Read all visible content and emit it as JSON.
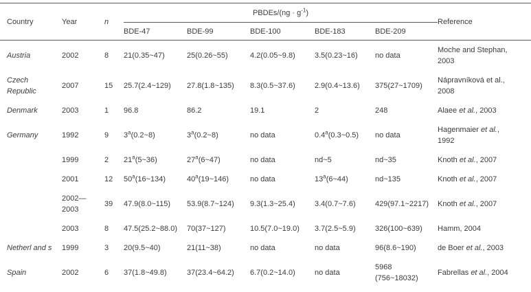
{
  "colors": {
    "background": "#ffffff",
    "text": "#3b3b3b",
    "rule": "#595959"
  },
  "table": {
    "header": {
      "country_label": "Country",
      "year_label": "Year",
      "n_label": "n",
      "group_label": "PBDEs/(ng · g{-1})",
      "congener_labels": [
        "BDE-47",
        "BDE-99",
        "BDE-100",
        "BDE-183",
        "BDE-209"
      ],
      "reference_label": "Reference"
    },
    "footnote_marker": "a",
    "no_data_text": "no data",
    "rows": [
      {
        "country": "Austria",
        "year": "2002",
        "n": "8",
        "bde47": "21(0.35~47)",
        "bde99": "25(0.26~55)",
        "bde100": "4.2(0.05~9.8)",
        "bde183": "3.5(0.23~16)",
        "bde209": "no data",
        "reference": "Moche and Stephan，2003"
      },
      {
        "country": "Czech Republic",
        "year": "2007",
        "n": "15",
        "bde47": "25.7(2.4~129)",
        "bde99": "27.8(1.8~135)",
        "bde100": "8.3(0.5~37.6)",
        "bde183": "2.9(0.4~13.6)",
        "bde209": "375(27~1709)",
        "reference": "Nápravníková et al.，2008"
      },
      {
        "country": "Denmark",
        "year": "2003",
        "n": "1",
        "bde47": "96.8",
        "bde99": "86.2",
        "bde100": "19.1",
        "bde183": "2",
        "bde209": "248",
        "reference": "Alaee *et al.*, 2003"
      },
      {
        "country": "Germany",
        "year": "1992",
        "n": "9",
        "bde47": "3{a}(0.2~8)",
        "bde99": "3{a}(0.2~8)",
        "bde100": "no data",
        "bde183": "0.4{a}(0.3~0.5)",
        "bde209": "no data",
        "reference": "Hagenmaier *et al.*, 1992"
      },
      {
        "country": "",
        "year": "1999",
        "n": "2",
        "bde47": "21{a}(5~36)",
        "bde99": "27{a}(6~47)",
        "bde100": "no data",
        "bde183": "nd~5",
        "bde209": "nd~35",
        "reference": "Knoth *et al.*, 2007"
      },
      {
        "country": "",
        "year": "2001",
        "n": "12",
        "bde47": "50{a}(16~134)",
        "bde99": "40{a}(19~146)",
        "bde100": "no data",
        "bde183": "13{a}(6~44)",
        "bde209": "nd~135",
        "reference": "Knoth *et al.*, 2007"
      },
      {
        "country": "",
        "year": "2002—\n2003",
        "n": "39",
        "bde47": "47.9(8.0~115)",
        "bde99": "53.9(8.7~124)",
        "bde100": "9.3(1.3~25.4)",
        "bde183": "3.4(0.7~7.6)",
        "bde209": "429(97.1~2217)",
        "reference": "Knoth *et al.*, 2007"
      },
      {
        "country": "",
        "year": "2003",
        "n": "8",
        "bde47": "47.5(25.2~88.0)",
        "bde99": "70(37~127)",
        "bde100": "10.5(7.0~19.0)",
        "bde183": "3.7(2.5~5.9)",
        "bde209": "326(100~639)",
        "reference": "Hamm，2004"
      },
      {
        "country": "Netherl and s",
        "year": "1999",
        "n": "3",
        "bde47": "20(9.5~40)",
        "bde99": "21(11~38)",
        "bde100": "no data",
        "bde183": "no data",
        "bde209": "96(8.6~190)",
        "reference": "de Boer *et al.*, 2003"
      },
      {
        "country": "Spain",
        "year": "2002",
        "n": "6",
        "bde47": "37(1.8~49.8)",
        "bde99": "37(23.4~64.2)",
        "bde100": "6.7(0.2~14.0)",
        "bde183": "no data",
        "bde209": "5968 (756~18032)",
        "reference": "Fabrellas *et al.*, 2004"
      }
    ]
  }
}
